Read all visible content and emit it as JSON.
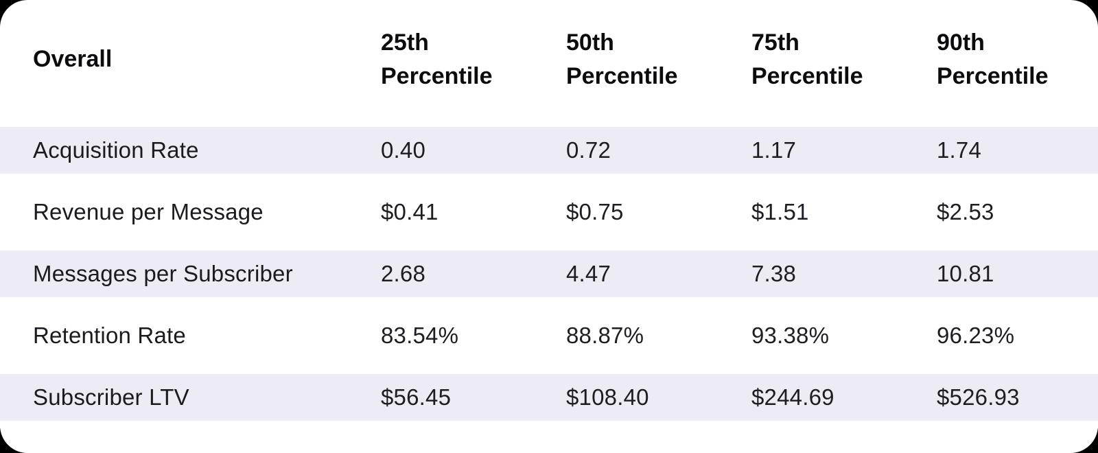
{
  "chart_data": {
    "type": "table",
    "title": "Overall",
    "columns": [
      "25th Percentile",
      "50th Percentile",
      "75th Percentile",
      "90th Percentile"
    ],
    "rows": [
      {
        "label": "Acquisition Rate",
        "values": [
          "0.40",
          "0.72",
          "1.17",
          "1.74"
        ]
      },
      {
        "label": "Revenue per Message",
        "values": [
          "$0.41",
          "$0.75",
          "$1.51",
          "$2.53"
        ]
      },
      {
        "label": "Messages per Subscriber",
        "values": [
          "2.68",
          "4.47",
          "7.38",
          "10.81"
        ]
      },
      {
        "label": "Retention Rate",
        "values": [
          "83.54%",
          "88.87%",
          "93.38%",
          "96.23%"
        ]
      },
      {
        "label": "Subscriber LTV",
        "values": [
          "$56.45",
          "$108.40",
          "$244.69",
          "$526.93"
        ]
      }
    ],
    "layout": {
      "striped_row_indices": [
        0,
        2,
        4
      ]
    }
  },
  "colors": {
    "page_background": "#000000",
    "card_background": "#ffffff",
    "stripe_background": "#edecf5",
    "header_text": "#0c0c0f",
    "body_text": "#1d1d22"
  }
}
